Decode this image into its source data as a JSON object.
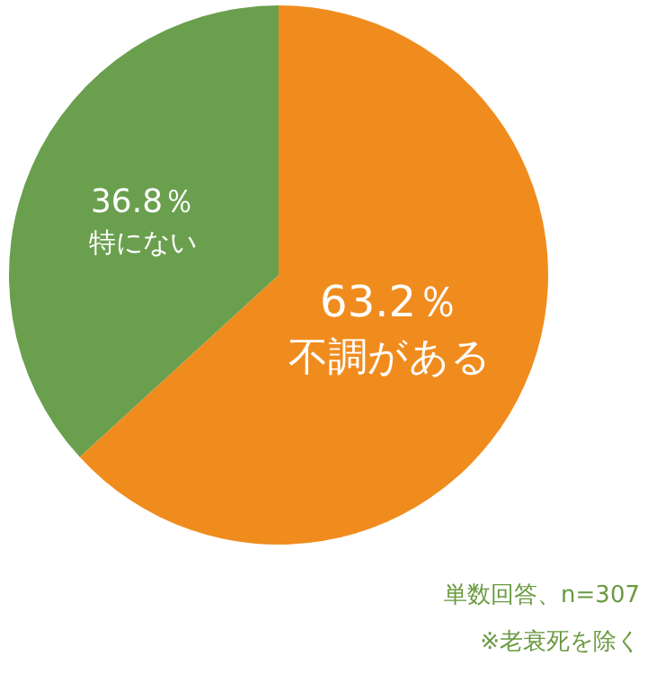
{
  "chart_data": {
    "type": "pie",
    "categories": [
      "不調がある",
      "特にない"
    ],
    "values": [
      63.2,
      36.8
    ],
    "colors": [
      "#f08c1e",
      "#6a9f4e"
    ],
    "value_labels": [
      "63.2％",
      "36.8％"
    ],
    "annotations": [
      "単数回答、n=307",
      "※老衰死を除く"
    ]
  }
}
